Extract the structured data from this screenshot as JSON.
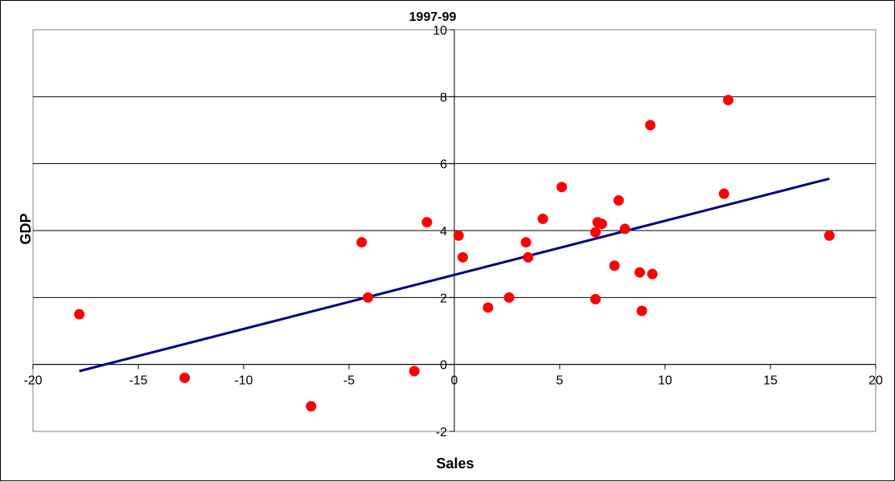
{
  "chart_data": {
    "type": "scatter",
    "title": "1997-99",
    "xlabel": "Sales",
    "ylabel": "GDP",
    "xlim": [
      -20,
      20
    ],
    "ylim": [
      -2,
      10
    ],
    "x_ticks": [
      -20,
      -15,
      -10,
      -5,
      0,
      5,
      10,
      15,
      20
    ],
    "y_ticks": [
      -2,
      0,
      2,
      4,
      6,
      8,
      10
    ],
    "x_tick_labels": [
      "-20",
      "-15",
      "-10",
      "-5",
      "0",
      "5",
      "10",
      "15",
      "20"
    ],
    "y_tick_labels": [
      "-2",
      "0",
      "2",
      "4",
      "6",
      "8",
      "10"
    ],
    "grid": "horizontal",
    "legend": "none",
    "point_color": "#ff0000",
    "line_color": "#000080",
    "series": [
      {
        "points": [
          {
            "x": -17.8,
            "y": 1.5
          },
          {
            "x": -12.8,
            "y": -0.4
          },
          {
            "x": -6.8,
            "y": -1.25
          },
          {
            "x": -4.4,
            "y": 3.65
          },
          {
            "x": -4.1,
            "y": 2.0
          },
          {
            "x": -1.9,
            "y": -0.2
          },
          {
            "x": -1.3,
            "y": 4.25
          },
          {
            "x": 0.2,
            "y": 3.85
          },
          {
            "x": 0.4,
            "y": 3.2
          },
          {
            "x": 1.6,
            "y": 1.7
          },
          {
            "x": 2.6,
            "y": 2.0
          },
          {
            "x": 3.4,
            "y": 3.65
          },
          {
            "x": 3.5,
            "y": 3.2
          },
          {
            "x": 4.2,
            "y": 4.35
          },
          {
            "x": 5.1,
            "y": 5.3
          },
          {
            "x": 6.7,
            "y": 1.95
          },
          {
            "x": 6.7,
            "y": 3.95
          },
          {
            "x": 6.8,
            "y": 4.25
          },
          {
            "x": 7.0,
            "y": 4.2
          },
          {
            "x": 7.6,
            "y": 2.95
          },
          {
            "x": 7.8,
            "y": 4.9
          },
          {
            "x": 8.1,
            "y": 4.05
          },
          {
            "x": 8.8,
            "y": 2.75
          },
          {
            "x": 8.9,
            "y": 1.6
          },
          {
            "x": 9.3,
            "y": 7.15
          },
          {
            "x": 9.4,
            "y": 2.7
          },
          {
            "x": 12.8,
            "y": 5.1
          },
          {
            "x": 13.0,
            "y": 7.9
          },
          {
            "x": 17.8,
            "y": 3.85
          }
        ]
      }
    ],
    "trendline": {
      "x": [
        -17.8,
        17.8
      ],
      "y": [
        -0.2,
        5.55
      ]
    }
  }
}
